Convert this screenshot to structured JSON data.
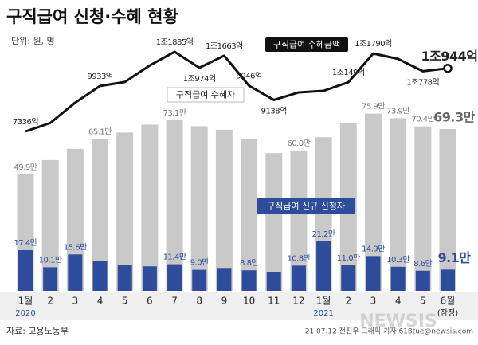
{
  "chart_data": {
    "type": "bar",
    "title": "구직급여 신청·수혜 현황",
    "subtitle": "단위: 원, 명",
    "categories": [
      "1월",
      "2",
      "3",
      "4",
      "5",
      "6",
      "7",
      "8",
      "9",
      "10",
      "11",
      "12",
      "1월",
      "2",
      "3",
      "4",
      "5",
      "6월"
    ],
    "sublabels": [
      "2020",
      null,
      null,
      null,
      null,
      null,
      null,
      null,
      null,
      null,
      null,
      null,
      "2021",
      null,
      null,
      null,
      null,
      "(잠정)"
    ],
    "series": [
      {
        "name": "구직급여 수혜자",
        "color": "#c9c9c9",
        "values": [
          49.9,
          56.0,
          60.8,
          65.1,
          67.8,
          71.2,
          73.1,
          70.5,
          69.0,
          65.0,
          59.0,
          60.0,
          65.8,
          71.9,
          75.9,
          73.9,
          70.4,
          69.3
        ],
        "value_labels": [
          "49.9만",
          null,
          null,
          "65.1만",
          null,
          null,
          "73.1만",
          null,
          null,
          null,
          null,
          "60.0만",
          null,
          null,
          "75.9만",
          "73.9만",
          "70.4만",
          "69.3만"
        ]
      },
      {
        "name": "구직급여 신규 신청자",
        "color": "#2e4c9c",
        "values": [
          17.4,
          10.1,
          15.6,
          12.9,
          11.1,
          10.5,
          11.4,
          9.0,
          9.8,
          8.8,
          7.9,
          10.8,
          21.2,
          11.0,
          14.9,
          10.3,
          8.6,
          9.1
        ],
        "value_labels": [
          "17.4만",
          "10.1만",
          "15.6만",
          null,
          null,
          null,
          "11.4만",
          "9.0만",
          null,
          "8.8만",
          null,
          "10.8만",
          "21.2만",
          "11.0만",
          "14.9만",
          "10.3만",
          "8.6만",
          "9.1만"
        ]
      },
      {
        "name": "구직급여 수혜금액",
        "type": "line",
        "color": "#111111",
        "values": [
          7336,
          7819,
          8982,
          9933,
          10162,
          11103,
          11885,
          10974,
          11663,
          9946,
          9138,
          9566,
          9657,
          10149,
          11790,
          11481,
          10778,
          10944
        ],
        "value_labels": [
          "7336억",
          null,
          null,
          "9933억",
          null,
          null,
          "1조1885억",
          "1조974억",
          "1조1663억",
          "9946억",
          "9138억",
          null,
          null,
          "1조149억",
          "1조1790억",
          null,
          "1조778억",
          "1조944억"
        ]
      }
    ],
    "source": "자료: 고용노동부",
    "credit": "21.07.12 전진우 그래픽 기자 618tue@newsis.com",
    "watermark": "NEWSIS"
  }
}
